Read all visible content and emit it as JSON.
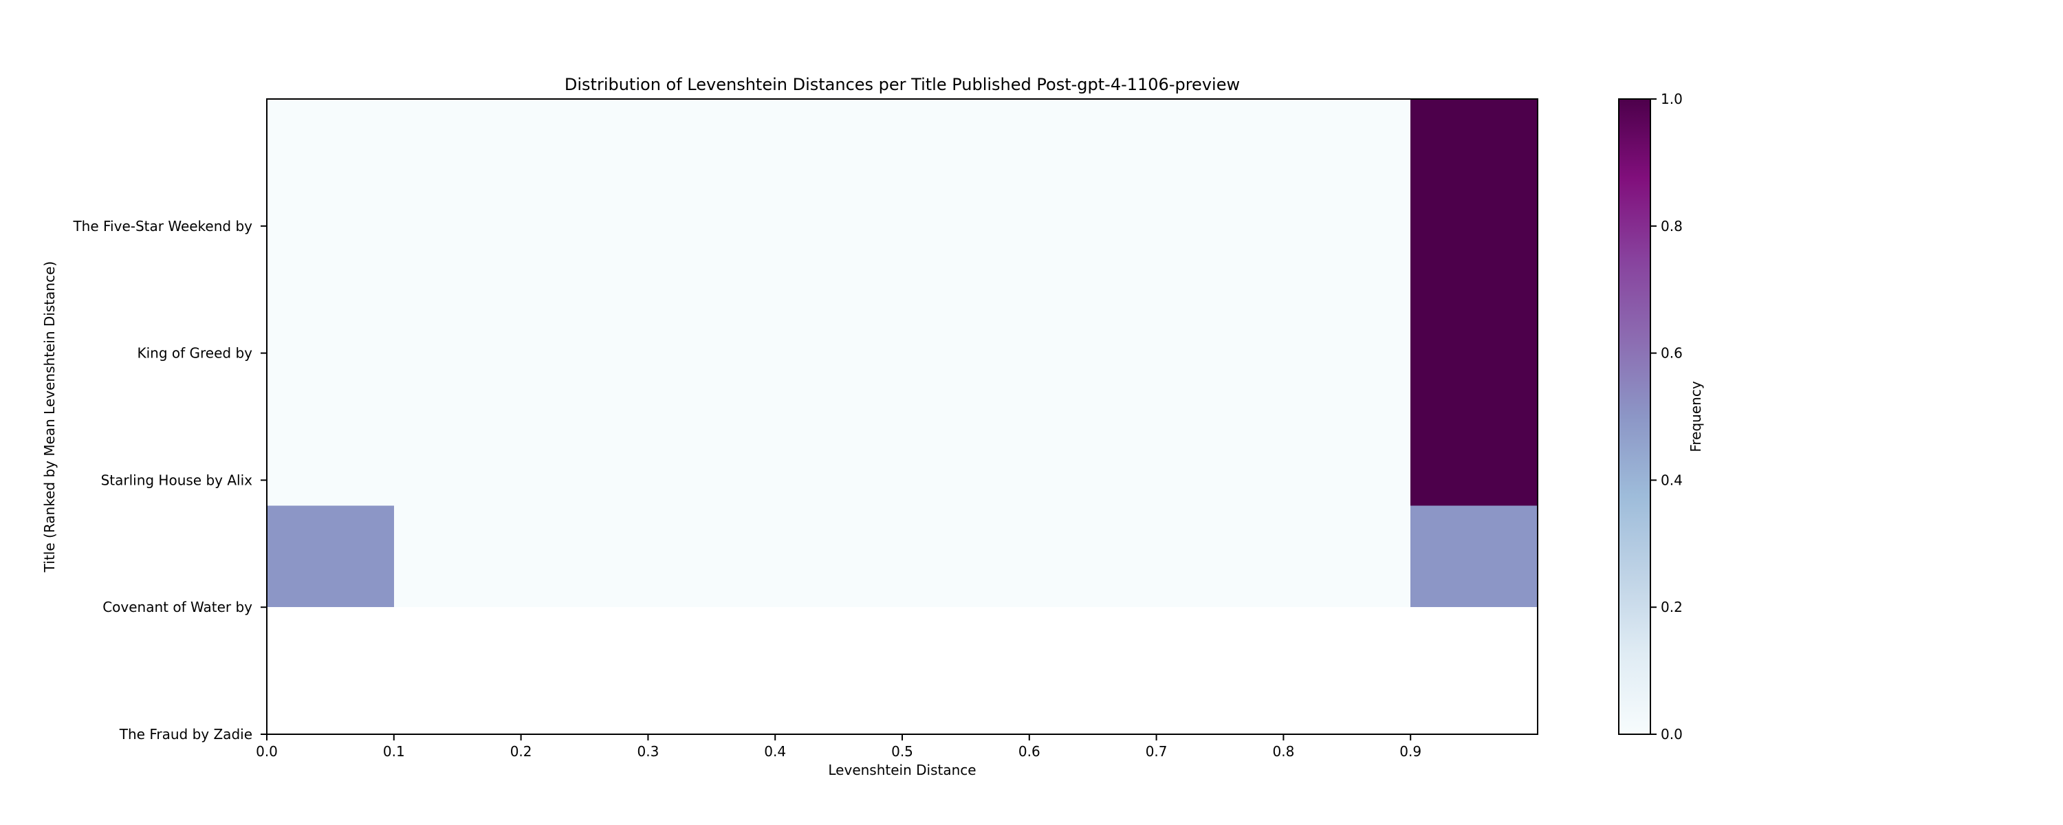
{
  "chart_data": {
    "type": "heatmap",
    "title": "Distribution of Levenshtein Distances per Title Published Post-gpt-4-1106-preview",
    "xlabel": "Levenshtein Distance",
    "ylabel": "Title (Ranked by Mean Levenshtein Distance)",
    "xlim": [
      0.0,
      1.0
    ],
    "x_ticks": [
      "0.0",
      "0.1",
      "0.2",
      "0.3",
      "0.4",
      "0.5",
      "0.6",
      "0.7",
      "0.8",
      "0.9"
    ],
    "x_tick_values": [
      0.0,
      0.1,
      0.2,
      0.3,
      0.4,
      0.5,
      0.6,
      0.7,
      0.8,
      0.9
    ],
    "y_ticks": [
      "The Fraud by Zadie",
      "Covenant of Water by",
      "Starling House by Alix",
      "King of Greed by",
      "The Five-Star Weekend by"
    ],
    "y_tick_values": [
      0,
      1,
      2,
      3,
      4
    ],
    "ylim": [
      0,
      5
    ],
    "bin_width": 0.1,
    "bins": [
      0.0,
      0.1,
      0.2,
      0.3,
      0.4,
      0.5,
      0.6,
      0.7,
      0.8,
      0.9
    ],
    "cells": [
      {
        "y0": 1.0,
        "y1": 1.8,
        "values": [
          0.5,
          0,
          0,
          0,
          0,
          0,
          0,
          0,
          0,
          0.5
        ]
      },
      {
        "y0": 1.8,
        "y1": 5.0,
        "values": [
          0,
          0,
          0,
          0,
          0,
          0,
          0,
          0,
          0,
          1.0
        ]
      }
    ],
    "colorbar": {
      "label": "Frequency",
      "range": [
        0.0,
        1.0
      ],
      "ticks": [
        "0.0",
        "0.2",
        "0.4",
        "0.6",
        "0.8",
        "1.0"
      ],
      "tick_values": [
        0.0,
        0.2,
        0.4,
        0.6,
        0.8,
        1.0
      ],
      "colormap": "BuPu",
      "stops": [
        "#f7fcfd",
        "#e0ecf4",
        "#bfd3e6",
        "#9ebcda",
        "#8c96c6",
        "#8c6bb1",
        "#88419d",
        "#810f7c",
        "#4d004b"
      ]
    },
    "grid": false
  }
}
